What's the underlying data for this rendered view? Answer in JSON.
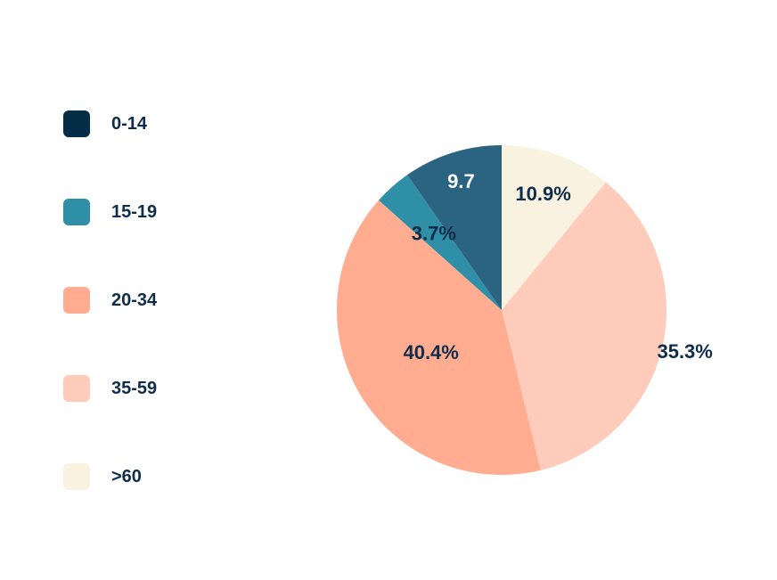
{
  "chart_data": {
    "type": "pie",
    "categories": [
      "0-14",
      "15-19",
      "20-34",
      "35-59",
      ">60"
    ],
    "values": [
      9.7,
      3.7,
      40.4,
      35.3,
      10.9
    ],
    "data_labels": [
      "9.7",
      "3.7%",
      "40.4%",
      "35.3%",
      "10.9%"
    ],
    "colors": [
      "#2a6480",
      "#2e8fa6",
      "#ffac90",
      "#ffcbba",
      "#f9f2e1"
    ],
    "legend_colors": [
      "#062d48",
      "#2e8fa6",
      "#ffac90",
      "#ffcbba",
      "#f9f2e1"
    ],
    "label_colors": [
      "#ffffff",
      "#0f2d4a",
      "#0f2d4a",
      "#0f2d4a",
      "#0f2d4a"
    ],
    "legend_position": "left"
  }
}
